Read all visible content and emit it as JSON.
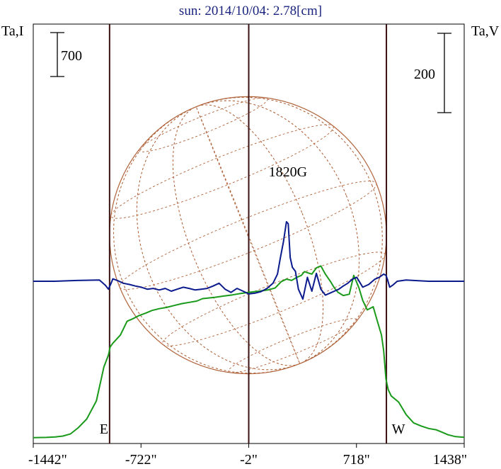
{
  "chart_data": {
    "type": "line",
    "title": "sun: 2014/10/04: 2.78[cm]",
    "left_axis_label": "Ta,I",
    "right_axis_label": "Ta,V",
    "scale_left": {
      "label": "700",
      "value": 700
    },
    "scale_right": {
      "label": "200",
      "value": 200
    },
    "xlim": [
      -1442,
      1438
    ],
    "x_ticks": [
      {
        "value": -1442,
        "label": "-1442\""
      },
      {
        "value": -722,
        "label": "-722\""
      },
      {
        "value": -2,
        "label": "-2\""
      },
      {
        "value": 718,
        "label": "718\""
      },
      {
        "value": 1438,
        "label": "1438\""
      }
    ],
    "limb_lines": [
      {
        "value": -932,
        "label": "E"
      },
      {
        "value": -2,
        "label": ""
      },
      {
        "value": 918,
        "label": "W"
      }
    ],
    "annotation": {
      "text": "1820G",
      "x": 260
    },
    "colors": {
      "intensity": "#1a9a1a",
      "polarization": "#0b1a8c",
      "disk": "#b0643c",
      "limb": "#3a1010"
    },
    "series": [
      {
        "key": "intensity",
        "x": [
          -1442,
          -1355,
          -1295,
          -1244,
          -1193,
          -1142,
          -1085,
          -1020,
          -970,
          -940,
          -928,
          -910,
          -860,
          -815,
          -775,
          -735,
          -690,
          -650,
          -600,
          -550,
          -500,
          -450,
          -400,
          -350,
          -310,
          -270,
          -230,
          -170,
          -110,
          -60,
          -2,
          70,
          130,
          175,
          215,
          250,
          285,
          320,
          350,
          370,
          395,
          420,
          450,
          480,
          510,
          545,
          570,
          595,
          630,
          670,
          700,
          735,
          760,
          790,
          830,
          860,
          885,
          900,
          915,
          930,
          950,
          1000,
          1050,
          1100,
          1150,
          1200,
          1250,
          1290,
          1330,
          1380,
          1438
        ],
        "values": [
          15,
          18,
          25,
          40,
          75,
          170,
          310,
          600,
          1140,
          1330,
          1460,
          1520,
          1650,
          1870,
          1910,
          1960,
          2000,
          2040,
          2070,
          2090,
          2120,
          2150,
          2170,
          2190,
          2230,
          2240,
          2250,
          2270,
          2290,
          2310,
          2330,
          2350,
          2370,
          2400,
          2500,
          2540,
          2520,
          2570,
          2600,
          2660,
          2640,
          2620,
          2720,
          2750,
          2620,
          2500,
          2400,
          2330,
          2280,
          2300,
          2600,
          2400,
          2200,
          2050,
          2100,
          1850,
          1650,
          1400,
          950,
          780,
          680,
          580,
          380,
          250,
          200,
          160,
          140,
          100,
          60,
          30,
          20
        ]
      },
      {
        "key": "polarization",
        "x": [
          -1442,
          -1300,
          -1150,
          -1000,
          -960,
          -940,
          -925,
          -910,
          -880,
          -840,
          -800,
          -760,
          -720,
          -680,
          -640,
          -600,
          -560,
          -520,
          -480,
          -440,
          -400,
          -360,
          -320,
          -280,
          -240,
          -200,
          -160,
          -120,
          -80,
          -40,
          -2,
          40,
          80,
          120,
          160,
          190,
          210,
          230,
          250,
          262,
          275,
          290,
          310,
          330,
          360,
          390,
          420,
          450,
          480,
          510,
          540,
          570,
          600,
          630,
          660,
          690,
          720,
          760,
          800,
          840,
          870,
          900,
          915,
          925,
          940,
          960,
          990,
          1050,
          1100,
          1200,
          1300,
          1438
        ],
        "values": [
          0,
          0,
          2,
          3,
          -10,
          -20,
          -8,
          6,
          2,
          -5,
          -8,
          -12,
          -15,
          -20,
          -18,
          -22,
          -18,
          -25,
          -20,
          -15,
          -18,
          -22,
          -20,
          -18,
          -12,
          -5,
          -20,
          -28,
          -18,
          -25,
          -32,
          -30,
          -26,
          -18,
          -5,
          18,
          60,
          100,
          150,
          145,
          60,
          35,
          25,
          -20,
          -45,
          10,
          -25,
          20,
          -20,
          -35,
          -30,
          -25,
          -20,
          -12,
          -5,
          5,
          10,
          -15,
          -8,
          5,
          10,
          18,
          15,
          5,
          -15,
          -10,
          0,
          3,
          2,
          0,
          0,
          0
        ]
      }
    ]
  }
}
